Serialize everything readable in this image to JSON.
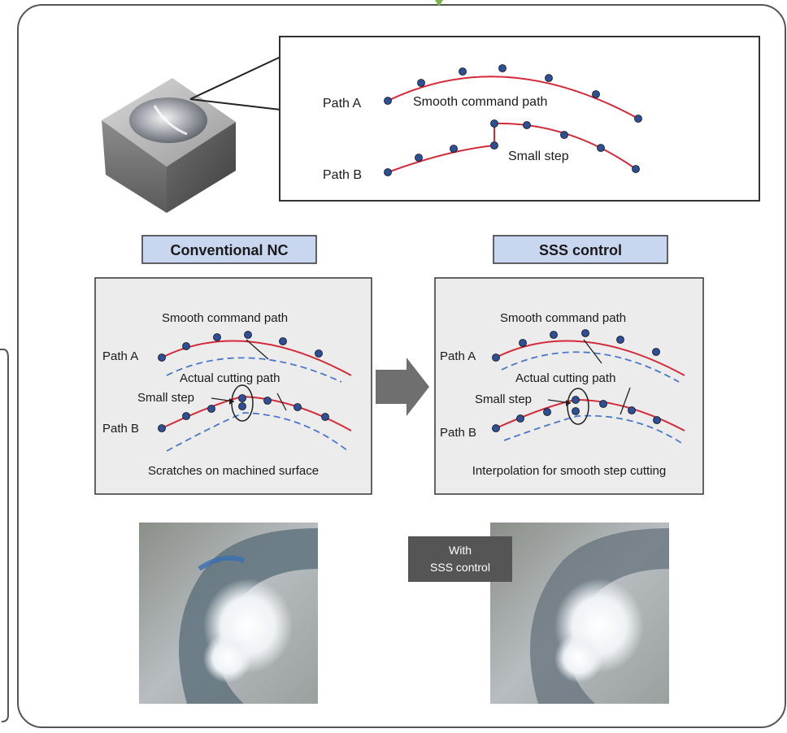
{
  "top_box": {
    "path_a_label": "Path A",
    "path_b_label": "Path B",
    "smooth_label": "Smooth command path",
    "step_label": "Small step"
  },
  "left_panel": {
    "header": "Conventional NC",
    "smooth_label": "Smooth command path",
    "actual_label": "Actual cutting path",
    "step_label": "Small step",
    "path_a_label": "Path A",
    "path_b_label": "Path B",
    "caption": "Scratches on machined surface"
  },
  "right_panel": {
    "header": "SSS control",
    "smooth_label": "Smooth command path",
    "actual_label": "Actual cutting path",
    "step_label": "Small step",
    "path_a_label": "Path A",
    "path_b_label": "Path B",
    "caption": "Interpolation for smooth step cutting"
  },
  "with_badge": {
    "line1": "With",
    "line2": "SSS control"
  },
  "colors": {
    "command_path": "#d42b3a",
    "actual_path": "#4a78c8",
    "point_fill": "#2c4f96",
    "header_fill": "#c8d6ef",
    "panel_fill": "#ececec",
    "arrow": "#6f6f6f",
    "badge": "#555555",
    "accent_green": "#7ab648"
  }
}
